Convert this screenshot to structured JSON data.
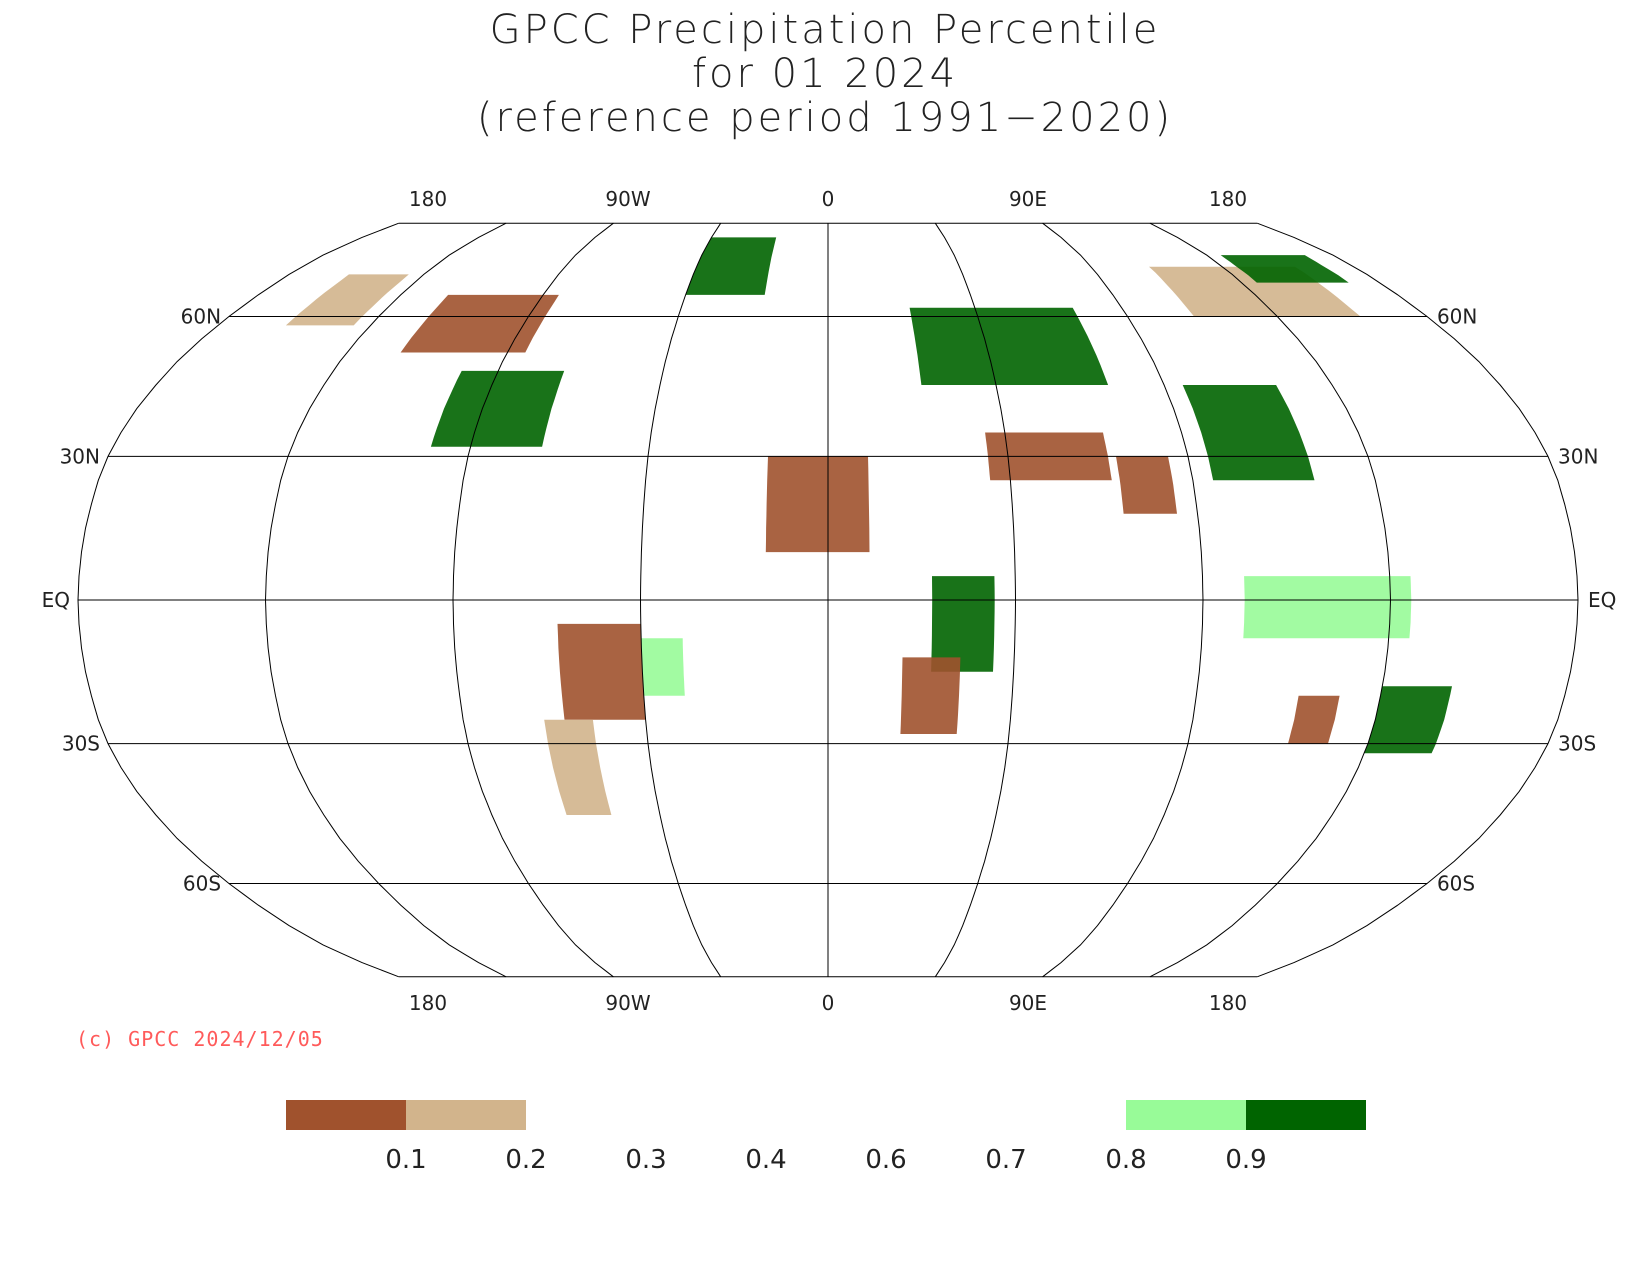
{
  "title": {
    "line1": "GPCC Precipitation Percentile",
    "line2": "for 01 2024",
    "line3": "(reference period 1991−2020)"
  },
  "map": {
    "projection": "robinson",
    "longitude_labels_top": [
      "180",
      "90W",
      "0",
      "90E",
      "180"
    ],
    "longitude_labels_bottom": [
      "180",
      "90W",
      "0",
      "90E",
      "180"
    ],
    "latitude_labels_left": [
      "60N",
      "30N",
      "EQ",
      "30S",
      "60S"
    ],
    "latitude_labels_right": [
      "60N",
      "30N",
      "EQ",
      "30S",
      "60S"
    ],
    "colors": {
      "very_dry": "#a0522d",
      "dry": "#d2b48c",
      "wet": "#98fb98",
      "very_wet": "#006400",
      "grid": "#000000"
    },
    "regions": [
      {
        "name": "north-america-central-wet",
        "class": "very_wet",
        "lon": [
          -100,
          -72
        ],
        "lat": [
          32,
          48
        ]
      },
      {
        "name": "canada-dry",
        "class": "very_dry",
        "lon": [
          -120,
          -85
        ],
        "lat": [
          52,
          65
        ]
      },
      {
        "name": "alaska-mixed",
        "class": "dry",
        "lon": [
          -160,
          -140
        ],
        "lat": [
          58,
          70
        ]
      },
      {
        "name": "greenland-wet",
        "class": "very_wet",
        "lon": [
          -45,
          -20
        ],
        "lat": [
          65,
          80
        ]
      },
      {
        "name": "south-america-dry",
        "class": "very_dry",
        "lon": [
          -65,
          -45
        ],
        "lat": [
          -25,
          -5
        ]
      },
      {
        "name": "brazil-east-wet",
        "class": "wet",
        "lon": [
          -45,
          -35
        ],
        "lat": [
          -20,
          -8
        ]
      },
      {
        "name": "argentina-dry",
        "class": "dry",
        "lon": [
          -70,
          -58
        ],
        "lat": [
          -45,
          -25
        ]
      },
      {
        "name": "sahara-west-dry",
        "class": "very_dry",
        "lon": [
          -15,
          10
        ],
        "lat": [
          10,
          30
        ]
      },
      {
        "name": "east-africa-wet",
        "class": "very_wet",
        "lon": [
          25,
          40
        ],
        "lat": [
          -15,
          5
        ]
      },
      {
        "name": "southern-africa-dry",
        "class": "very_dry",
        "lon": [
          18,
          32
        ],
        "lat": [
          -28,
          -12
        ]
      },
      {
        "name": "europe-russia-wet",
        "class": "very_wet",
        "lon": [
          25,
          75
        ],
        "lat": [
          45,
          62
        ]
      },
      {
        "name": "middle-east-dry",
        "class": "very_dry",
        "lon": [
          40,
          70
        ],
        "lat": [
          25,
          35
        ]
      },
      {
        "name": "china-wet",
        "class": "very_wet",
        "lon": [
          95,
          120
        ],
        "lat": [
          25,
          45
        ]
      },
      {
        "name": "siberia-east-dry",
        "class": "dry",
        "lon": [
          110,
          160
        ],
        "lat": [
          60,
          72
        ]
      },
      {
        "name": "siberia-north-wet",
        "class": "very_wet",
        "lon": [
          140,
          170
        ],
        "lat": [
          68,
          75
        ]
      },
      {
        "name": "indonesia-wet",
        "class": "wet",
        "lon": [
          100,
          140
        ],
        "lat": [
          -8,
          5
        ]
      },
      {
        "name": "australia-east-wet",
        "class": "very_wet",
        "lon": [
          135,
          152
        ],
        "lat": [
          -32,
          -18
        ]
      },
      {
        "name": "australia-west-dry",
        "class": "very_dry",
        "lon": [
          115,
          125
        ],
        "lat": [
          -30,
          -20
        ]
      },
      {
        "name": "india-dry",
        "class": "very_dry",
        "lon": [
          72,
          85
        ],
        "lat": [
          18,
          30
        ]
      }
    ]
  },
  "copyright": "(c) GPCC 2024/12/05",
  "legend": {
    "bins": [
      {
        "from": 0.0,
        "to": 0.1,
        "color": "#a0522d"
      },
      {
        "from": 0.1,
        "to": 0.2,
        "color": "#d2b48c"
      },
      {
        "from": 0.2,
        "to": 0.8,
        "color": "#ffffff"
      },
      {
        "from": 0.8,
        "to": 0.9,
        "color": "#98fb98"
      },
      {
        "from": 0.9,
        "to": 1.0,
        "color": "#006400"
      }
    ],
    "tick_labels": [
      "0.1",
      "0.2",
      "0.3",
      "0.4",
      "0.6",
      "0.7",
      "0.8",
      "0.9"
    ]
  }
}
